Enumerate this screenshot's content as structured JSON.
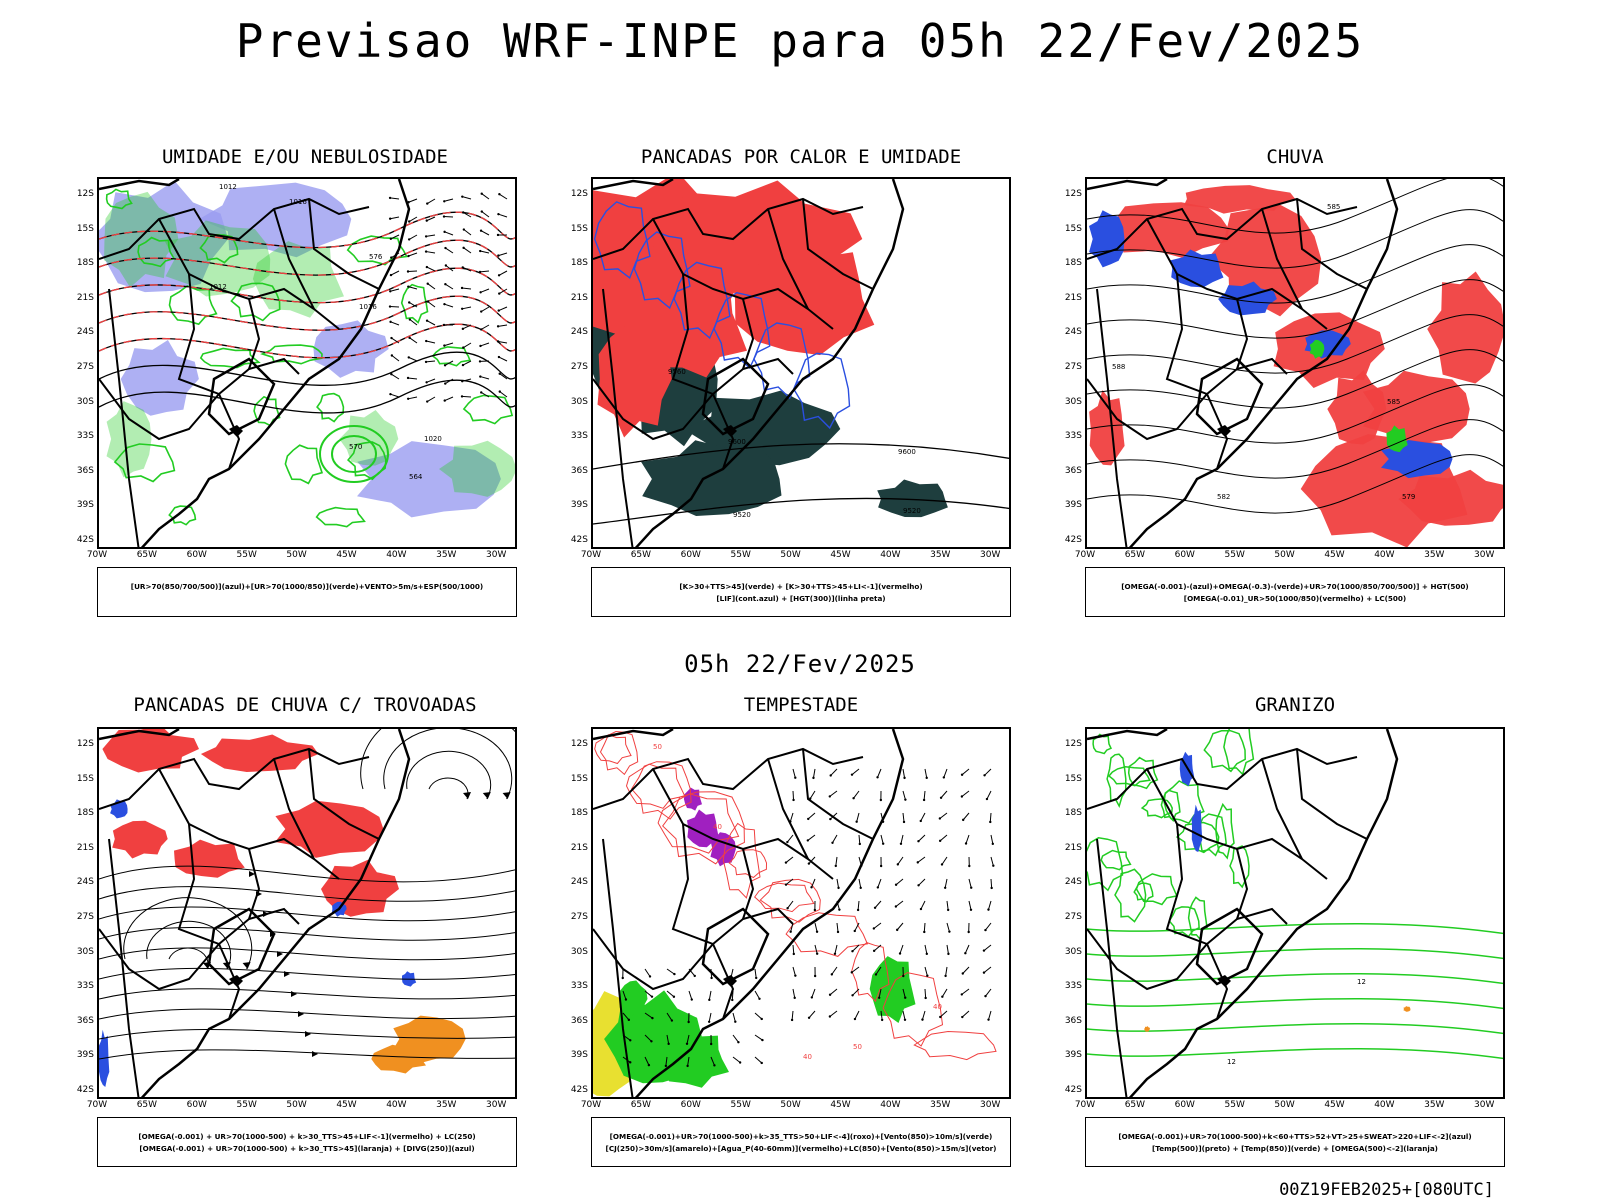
{
  "title": "Previsao WRF-INPE  para 05h 22/Fev/2025",
  "mid_time": "05h 22/Fev/2025",
  "footer": "00Z19FEB2025+[080UTC]",
  "lat_labels": [
    "12S",
    "15S",
    "18S",
    "21S",
    "24S",
    "27S",
    "30S",
    "33S",
    "36S",
    "39S",
    "42S"
  ],
  "lon_labels": [
    "70W",
    "65W",
    "60W",
    "55W",
    "50W",
    "45W",
    "40W",
    "35W",
    "30W"
  ],
  "colors": {
    "red": "#f04040",
    "green": "#22cc22",
    "blue": "#2a4fe0",
    "lavender": "#9a9cf0",
    "dark": "#1e3e3e",
    "orange": "#f09020",
    "purple": "#a020c0",
    "yellow": "#e8e030"
  },
  "panels": [
    {
      "title": "UMIDADE E/OU NEBULOSIDADE",
      "legend": [
        "[UR>70(850/700/500)](azul)+[UR>70(1000/850)](verde)+VENTO>5m/s+ESP(500/1000)"
      ],
      "contour_labels": [
        "1012",
        "1016",
        "1020",
        "576",
        "570",
        "564",
        "1012",
        "1016"
      ]
    },
    {
      "title": "PANCADAS POR CALOR E UMIDADE",
      "legend": [
        "[K>30+TTS>45](verde) + [K>30+TTS>45+LI<-1](vermelho)",
        "[LIF](cont.azul) + [HGT(300)](linha preta)"
      ],
      "contour_labels": [
        "9600",
        "9560",
        "9520",
        "9600",
        "9520"
      ]
    },
    {
      "title": "CHUVA",
      "legend": [
        "[OMEGA(-0.001)-(azul)+OMEGA(-0.3)-(verde)+UR>70(1000/850/700/500)] + HGT(500)",
        "[OMEGA(-0.01)_UR>50(1000/850)(vermelho) + LC(500)"
      ],
      "contour_labels": [
        "588",
        "585",
        "582",
        "579",
        "585"
      ]
    },
    {
      "title": "PANCADAS DE CHUVA C/ TROVOADAS",
      "legend": [
        "[OMEGA(-0.001) + UR>70(1000-500) + k>30_TTS>45+LIF<-1](vermelho) + LC(250)",
        "[OMEGA(-0.001) + UR>70(1000-500) + k>30_TTS>45](laranja) + [DIVG(250)](azul)"
      ],
      "contour_labels": []
    },
    {
      "title": "TEMPESTADE",
      "legend": [
        "[OMEGA(-0.001)+UR>70(1000-500)+k>35_TTS>50+LIF<-4](roxo)+[Vento(850)>10m/s](verde)",
        "[CJ(250)>30m/s](amarelo)+[Agua_P(40-60mm)](vermelho)+LC(850)+[Vento(850)>15m/s](vetor)"
      ],
      "contour_labels": [
        "50",
        "40",
        "40",
        "50",
        "40"
      ]
    },
    {
      "title": "GRANIZO",
      "legend": [
        "[OMEGA(-0.001)+UR>70(1000-500)+k<60+TTS>52+VT>25+SWEAT>220+LIF<-2](azul)",
        "[Temp(500)](preto) + [Temp(850)](verde) + [OMEGA(500)<-2](laranja)"
      ],
      "contour_labels": [
        "12",
        "12"
      ]
    }
  ]
}
